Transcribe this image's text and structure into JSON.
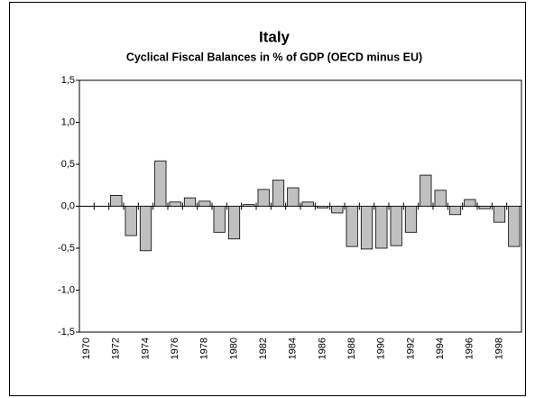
{
  "chart_data": {
    "type": "bar",
    "title": "Italy",
    "subtitle": "Cyclical Fiscal Balances in % of GDP (OECD minus EU)",
    "categories": [
      "1970",
      null,
      "1972",
      null,
      "1974",
      null,
      "1976",
      null,
      "1978",
      null,
      "1980",
      null,
      "1982",
      null,
      "1984",
      null,
      "1986",
      null,
      "1988",
      null,
      "1990",
      null,
      "1992",
      null,
      "1994",
      null,
      "1996",
      null,
      "1998",
      null
    ],
    "values": [
      null,
      null,
      0.13,
      -0.35,
      -0.53,
      0.54,
      0.05,
      0.1,
      0.06,
      -0.31,
      -0.39,
      0.02,
      0.2,
      0.31,
      0.22,
      0.05,
      -0.02,
      -0.08,
      -0.48,
      -0.51,
      -0.5,
      -0.47,
      -0.31,
      0.37,
      0.19,
      -0.1,
      0.08,
      -0.03,
      -0.19,
      -0.48
    ],
    "color": "#c0c0c0",
    "ylim": [
      -1.5,
      1.5
    ],
    "yticks": [
      {
        "value": -1.5,
        "label": "-1,5"
      },
      {
        "value": -1.0,
        "label": "-1,0"
      },
      {
        "value": -0.5,
        "label": "-0,5"
      },
      {
        "value": 0,
        "label": "0,0"
      },
      {
        "value": 0.5,
        "label": "0,5"
      },
      {
        "value": 1.0,
        "label": "1,0"
      },
      {
        "value": 1.5,
        "label": "1,5"
      }
    ]
  }
}
